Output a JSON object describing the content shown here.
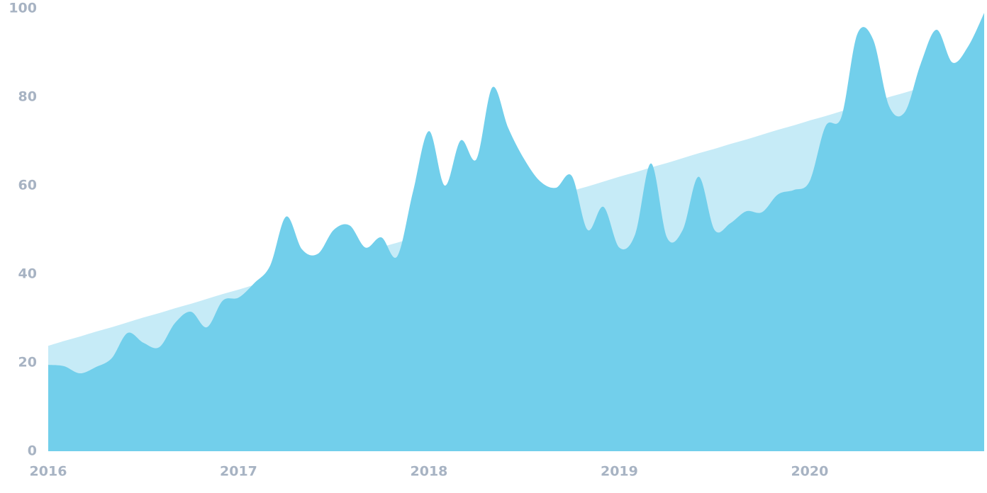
{
  "chart_data": {
    "type": "area",
    "categories": [
      "2016",
      null,
      null,
      null,
      null,
      null,
      null,
      null,
      null,
      null,
      null,
      null,
      "2017",
      null,
      null,
      null,
      null,
      null,
      null,
      null,
      null,
      null,
      null,
      null,
      "2018",
      null,
      null,
      null,
      null,
      null,
      null,
      null,
      null,
      null,
      null,
      null,
      "2019",
      null,
      null,
      null,
      null,
      null,
      null,
      null,
      null,
      null,
      null,
      null,
      "2020",
      null,
      null,
      null,
      null,
      null,
      null,
      null,
      null,
      null,
      null,
      null
    ],
    "series": [
      {
        "color": "#c6ebf7",
        "values": [
          23.8,
          24.9,
          25.9,
          27.0,
          28.0,
          29.1,
          30.2,
          31.2,
          32.3,
          33.3,
          34.4,
          35.5,
          36.5,
          37.6,
          38.6,
          39.7,
          40.8,
          41.8,
          42.9,
          43.9,
          45.0,
          46.1,
          47.1,
          48.2,
          49.2,
          50.3,
          51.4,
          52.4,
          53.5,
          54.5,
          55.6,
          56.7,
          57.7,
          58.8,
          59.8,
          60.9,
          62.0,
          63.0,
          64.1,
          65.1,
          66.2,
          67.3,
          68.3,
          69.4,
          70.4,
          71.5,
          72.6,
          73.6,
          74.7,
          75.7,
          76.8,
          77.9,
          78.9,
          80.0,
          81.0,
          82.1,
          83.2,
          84.2,
          85.3,
          86.3
        ]
      },
      {
        "color": "#72cfeb",
        "values": [
          19.5,
          19.2,
          17.6,
          19,
          21,
          26.7,
          24.5,
          23.5,
          29,
          31.5,
          28,
          34,
          34.7,
          38,
          42,
          53,
          45.6,
          44.6,
          50,
          51,
          46,
          48.3,
          44,
          58.7,
          72.3,
          60,
          70.2,
          66,
          82.2,
          73,
          66,
          61,
          59.5,
          62.2,
          50,
          55.2,
          46,
          49,
          65,
          48.3,
          50,
          62,
          50,
          51.5,
          54.2,
          54,
          58,
          59,
          61,
          73.4,
          75.5,
          94.2,
          93,
          78,
          76.6,
          87.5,
          95.2,
          87.8,
          91.5,
          99
        ]
      }
    ],
    "ylim": [
      0,
      100
    ],
    "yticks": [
      0,
      20,
      40,
      60,
      80,
      100
    ],
    "grid": false
  }
}
